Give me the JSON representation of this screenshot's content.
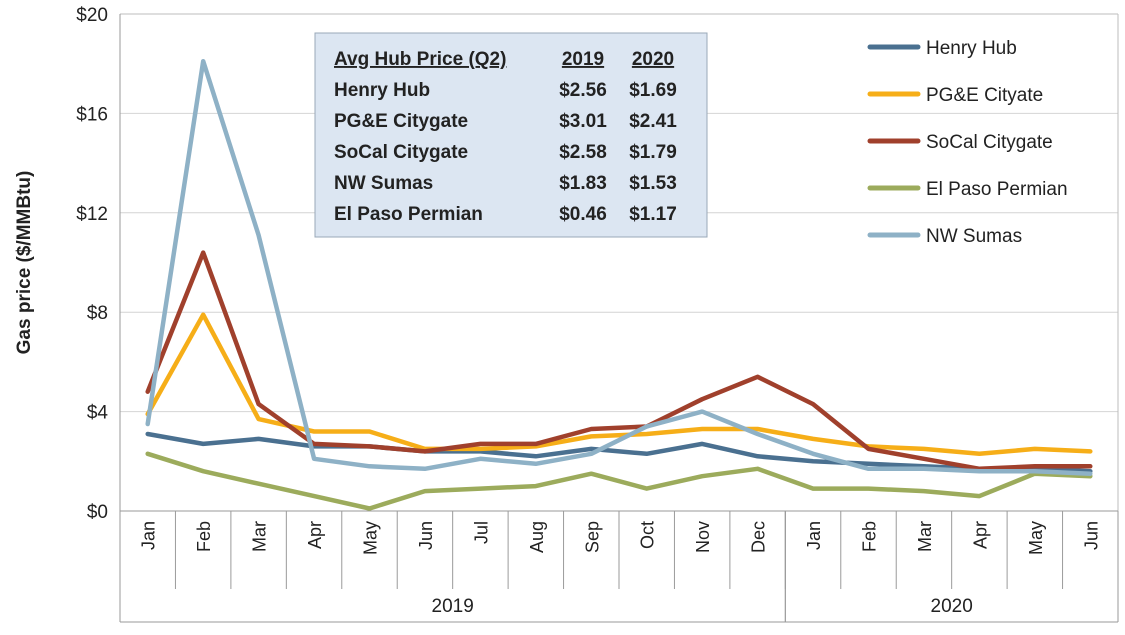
{
  "chart_data": {
    "type": "line",
    "ylabel": "Gas price ($/MMBtu)",
    "ylim": [
      0,
      20
    ],
    "yticks": [
      0,
      4,
      8,
      12,
      16,
      20
    ],
    "ytick_labels": [
      "$0",
      "$4",
      "$8",
      "$12",
      "$16",
      "$20"
    ],
    "categories": [
      "Jan",
      "Feb",
      "Mar",
      "Apr",
      "May",
      "Jun",
      "Jul",
      "Aug",
      "Sep",
      "Oct",
      "Nov",
      "Dec",
      "Jan",
      "Feb",
      "Mar",
      "Apr",
      "May",
      "Jun"
    ],
    "year_groups": [
      {
        "label": "2019",
        "start": 0,
        "end": 11
      },
      {
        "label": "2020",
        "start": 12,
        "end": 17
      }
    ],
    "grid": "horizontal",
    "legend_position": "right",
    "series": [
      {
        "name": "Henry Hub",
        "color": "#4a7090",
        "values": [
          3.1,
          2.7,
          2.9,
          2.6,
          2.6,
          2.4,
          2.4,
          2.2,
          2.5,
          2.3,
          2.7,
          2.2,
          2.0,
          1.9,
          1.8,
          1.7,
          1.7,
          1.6
        ]
      },
      {
        "name": "PG&E Cityate",
        "color": "#f6ae18",
        "values": [
          3.9,
          7.9,
          3.7,
          3.2,
          3.2,
          2.5,
          2.5,
          2.6,
          3.0,
          3.1,
          3.3,
          3.3,
          2.9,
          2.6,
          2.5,
          2.3,
          2.5,
          2.4
        ]
      },
      {
        "name": "SoCal Citygate",
        "color": "#a0402c",
        "values": [
          4.8,
          10.4,
          4.3,
          2.7,
          2.6,
          2.4,
          2.7,
          2.7,
          3.3,
          3.4,
          4.5,
          5.4,
          4.3,
          2.5,
          2.1,
          1.7,
          1.8,
          1.8
        ]
      },
      {
        "name": "El Paso Permian",
        "color": "#9cab5c",
        "values": [
          2.3,
          1.6,
          1.1,
          0.6,
          0.1,
          0.8,
          0.9,
          1.0,
          1.5,
          0.9,
          1.4,
          1.7,
          0.9,
          0.9,
          0.8,
          0.6,
          1.5,
          1.4
        ]
      },
      {
        "name": "NW Sumas",
        "color": "#8eb1c6",
        "values": [
          3.5,
          18.1,
          11.1,
          2.1,
          1.8,
          1.7,
          2.1,
          1.9,
          2.3,
          3.4,
          4.0,
          3.1,
          2.3,
          1.7,
          1.7,
          1.6,
          1.6,
          1.5
        ]
      }
    ],
    "summary_table": {
      "header": [
        "Avg Hub Price (Q2)",
        "2019",
        "2020"
      ],
      "rows": [
        [
          "Henry Hub",
          "$2.56",
          "$1.69"
        ],
        [
          "PG&E Citygate",
          "$3.01",
          "$2.41"
        ],
        [
          "SoCal Citygate",
          "$2.58",
          "$1.79"
        ],
        [
          "NW Sumas",
          "$1.83",
          "$1.53"
        ],
        [
          "El Paso Permian",
          "$0.46",
          "$1.17"
        ]
      ]
    }
  }
}
